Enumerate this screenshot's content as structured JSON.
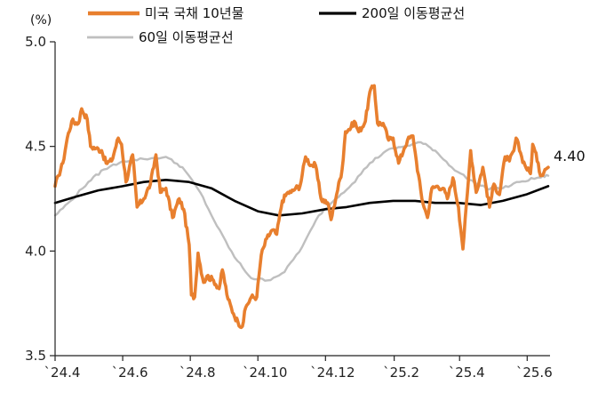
{
  "chart_data": {
    "type": "line",
    "unit_label": "(%)",
    "end_label": "4.40",
    "ylim": [
      3.5,
      5.0
    ],
    "yticks": [
      {
        "value": 5.0,
        "label": "5.0"
      },
      {
        "value": 4.5,
        "label": "4.5"
      },
      {
        "value": 4.0,
        "label": "4.0"
      },
      {
        "value": 3.5,
        "label": "3.5"
      }
    ],
    "xlim": [
      "2024-04-01",
      "2025-06-20"
    ],
    "xticks": [
      {
        "date": "2024-04-01",
        "label": "`24.4"
      },
      {
        "date": "2024-06-01",
        "label": "`24.6"
      },
      {
        "date": "2024-08-01",
        "label": "`24.8"
      },
      {
        "date": "2024-10-01",
        "label": "`24.10"
      },
      {
        "date": "2024-12-01",
        "label": "`24.12"
      },
      {
        "date": "2025-02-01",
        "label": "`25.2"
      },
      {
        "date": "2025-04-01",
        "label": "`25.4"
      },
      {
        "date": "2025-06-01",
        "label": "`25.6"
      }
    ],
    "legend_placement": "top",
    "grid": false,
    "series": [
      {
        "name": "미국 국채 10년물",
        "color": "#E87F2E",
        "points": [
          [
            "2024-04-01",
            4.31
          ],
          [
            "2024-04-04",
            4.36
          ],
          [
            "2024-04-08",
            4.42
          ],
          [
            "2024-04-12",
            4.54
          ],
          [
            "2024-04-16",
            4.62
          ],
          [
            "2024-04-22",
            4.61
          ],
          [
            "2024-04-25",
            4.68
          ],
          [
            "2024-04-30",
            4.63
          ],
          [
            "2024-05-03",
            4.5
          ],
          [
            "2024-05-08",
            4.49
          ],
          [
            "2024-05-13",
            4.48
          ],
          [
            "2024-05-17",
            4.42
          ],
          [
            "2024-05-22",
            4.43
          ],
          [
            "2024-05-28",
            4.54
          ],
          [
            "2024-05-31",
            4.51
          ],
          [
            "2024-06-04",
            4.33
          ],
          [
            "2024-06-10",
            4.46
          ],
          [
            "2024-06-14",
            4.21
          ],
          [
            "2024-06-20",
            4.25
          ],
          [
            "2024-06-26",
            4.32
          ],
          [
            "2024-07-01",
            4.46
          ],
          [
            "2024-07-05",
            4.28
          ],
          [
            "2024-07-10",
            4.3
          ],
          [
            "2024-07-16",
            4.16
          ],
          [
            "2024-07-22",
            4.25
          ],
          [
            "2024-07-26",
            4.2
          ],
          [
            "2024-07-31",
            4.03
          ],
          [
            "2024-08-02",
            3.79
          ],
          [
            "2024-08-05",
            3.78
          ],
          [
            "2024-08-08",
            3.99
          ],
          [
            "2024-08-13",
            3.85
          ],
          [
            "2024-08-16",
            3.88
          ],
          [
            "2024-08-22",
            3.86
          ],
          [
            "2024-08-27",
            3.82
          ],
          [
            "2024-08-30",
            3.91
          ],
          [
            "2024-09-04",
            3.77
          ],
          [
            "2024-09-09",
            3.7
          ],
          [
            "2024-09-13",
            3.66
          ],
          [
            "2024-09-17",
            3.64
          ],
          [
            "2024-09-20",
            3.73
          ],
          [
            "2024-09-25",
            3.78
          ],
          [
            "2024-09-30",
            3.78
          ],
          [
            "2024-10-04",
            3.98
          ],
          [
            "2024-10-09",
            4.06
          ],
          [
            "2024-10-14",
            4.1
          ],
          [
            "2024-10-18",
            4.08
          ],
          [
            "2024-10-23",
            4.24
          ],
          [
            "2024-10-28",
            4.28
          ],
          [
            "2024-10-31",
            4.28
          ],
          [
            "2024-11-04",
            4.3
          ],
          [
            "2024-11-08",
            4.31
          ],
          [
            "2024-11-13",
            4.45
          ],
          [
            "2024-11-18",
            4.41
          ],
          [
            "2024-11-22",
            4.41
          ],
          [
            "2024-11-27",
            4.25
          ],
          [
            "2024-12-03",
            4.23
          ],
          [
            "2024-12-06",
            4.15
          ],
          [
            "2024-12-11",
            4.27
          ],
          [
            "2024-12-16",
            4.39
          ],
          [
            "2024-12-19",
            4.57
          ],
          [
            "2024-12-24",
            4.59
          ],
          [
            "2024-12-27",
            4.62
          ],
          [
            "2024-12-31",
            4.57
          ],
          [
            "2025-01-06",
            4.62
          ],
          [
            "2025-01-10",
            4.76
          ],
          [
            "2025-01-14",
            4.79
          ],
          [
            "2025-01-17",
            4.61
          ],
          [
            "2025-01-22",
            4.61
          ],
          [
            "2025-01-27",
            4.53
          ],
          [
            "2025-01-31",
            4.54
          ],
          [
            "2025-02-05",
            4.42
          ],
          [
            "2025-02-10",
            4.49
          ],
          [
            "2025-02-13",
            4.53
          ],
          [
            "2025-02-18",
            4.55
          ],
          [
            "2025-02-21",
            4.43
          ],
          [
            "2025-02-26",
            4.25
          ],
          [
            "2025-03-03",
            4.16
          ],
          [
            "2025-03-07",
            4.3
          ],
          [
            "2025-03-12",
            4.31
          ],
          [
            "2025-03-17",
            4.3
          ],
          [
            "2025-03-21",
            4.25
          ],
          [
            "2025-03-26",
            4.35
          ],
          [
            "2025-03-31",
            4.21
          ],
          [
            "2025-04-03",
            4.06
          ],
          [
            "2025-04-04",
            4.01
          ],
          [
            "2025-04-09",
            4.34
          ],
          [
            "2025-04-11",
            4.48
          ],
          [
            "2025-04-16",
            4.28
          ],
          [
            "2025-04-22",
            4.4
          ],
          [
            "2025-04-28",
            4.21
          ],
          [
            "2025-05-02",
            4.32
          ],
          [
            "2025-05-07",
            4.27
          ],
          [
            "2025-05-12",
            4.45
          ],
          [
            "2025-05-16",
            4.43
          ],
          [
            "2025-05-20",
            4.48
          ],
          [
            "2025-05-22",
            4.54
          ],
          [
            "2025-05-27",
            4.45
          ],
          [
            "2025-05-30",
            4.41
          ],
          [
            "2025-06-04",
            4.37
          ],
          [
            "2025-06-06",
            4.51
          ],
          [
            "2025-06-11",
            4.42
          ],
          [
            "2025-06-13",
            4.36
          ],
          [
            "2025-06-17",
            4.39
          ],
          [
            "2025-06-20",
            4.4
          ]
        ]
      },
      {
        "name": "200일 이동평균선",
        "color": "#000000",
        "points": [
          [
            "2024-04-01",
            4.23
          ],
          [
            "2024-04-20",
            4.26
          ],
          [
            "2024-05-10",
            4.29
          ],
          [
            "2024-06-01",
            4.31
          ],
          [
            "2024-06-20",
            4.33
          ],
          [
            "2024-07-10",
            4.34
          ],
          [
            "2024-07-31",
            4.33
          ],
          [
            "2024-08-20",
            4.3
          ],
          [
            "2024-09-10",
            4.24
          ],
          [
            "2024-10-01",
            4.19
          ],
          [
            "2024-10-20",
            4.17
          ],
          [
            "2024-11-10",
            4.18
          ],
          [
            "2024-12-01",
            4.2
          ],
          [
            "2024-12-20",
            4.21
          ],
          [
            "2025-01-10",
            4.23
          ],
          [
            "2025-01-31",
            4.24
          ],
          [
            "2025-02-20",
            4.24
          ],
          [
            "2025-03-10",
            4.23
          ],
          [
            "2025-03-31",
            4.23
          ],
          [
            "2025-04-20",
            4.22
          ],
          [
            "2025-05-10",
            4.24
          ],
          [
            "2025-05-31",
            4.27
          ],
          [
            "2025-06-20",
            4.31
          ]
        ]
      },
      {
        "name": "60일 이동평균선",
        "color": "#BFBFBF",
        "points": [
          [
            "2024-04-01",
            4.17
          ],
          [
            "2024-04-15",
            4.24
          ],
          [
            "2024-05-01",
            4.33
          ],
          [
            "2024-05-15",
            4.39
          ],
          [
            "2024-06-01",
            4.43
          ],
          [
            "2024-06-20",
            4.44
          ],
          [
            "2024-07-10",
            4.45
          ],
          [
            "2024-07-25",
            4.4
          ],
          [
            "2024-08-10",
            4.28
          ],
          [
            "2024-08-25",
            4.12
          ],
          [
            "2024-09-10",
            3.97
          ],
          [
            "2024-09-25",
            3.87
          ],
          [
            "2024-10-10",
            3.86
          ],
          [
            "2024-10-25",
            3.9
          ],
          [
            "2024-11-10",
            4.02
          ],
          [
            "2024-11-25",
            4.17
          ],
          [
            "2024-12-10",
            4.25
          ],
          [
            "2024-12-25",
            4.32
          ],
          [
            "2025-01-10",
            4.42
          ],
          [
            "2025-01-25",
            4.48
          ],
          [
            "2025-02-10",
            4.5
          ],
          [
            "2025-02-25",
            4.52
          ],
          [
            "2025-03-10",
            4.48
          ],
          [
            "2025-03-25",
            4.4
          ],
          [
            "2025-04-10",
            4.34
          ],
          [
            "2025-04-25",
            4.3
          ],
          [
            "2025-05-10",
            4.3
          ],
          [
            "2025-05-25",
            4.33
          ],
          [
            "2025-06-10",
            4.35
          ],
          [
            "2025-06-20",
            4.36
          ]
        ]
      }
    ]
  }
}
